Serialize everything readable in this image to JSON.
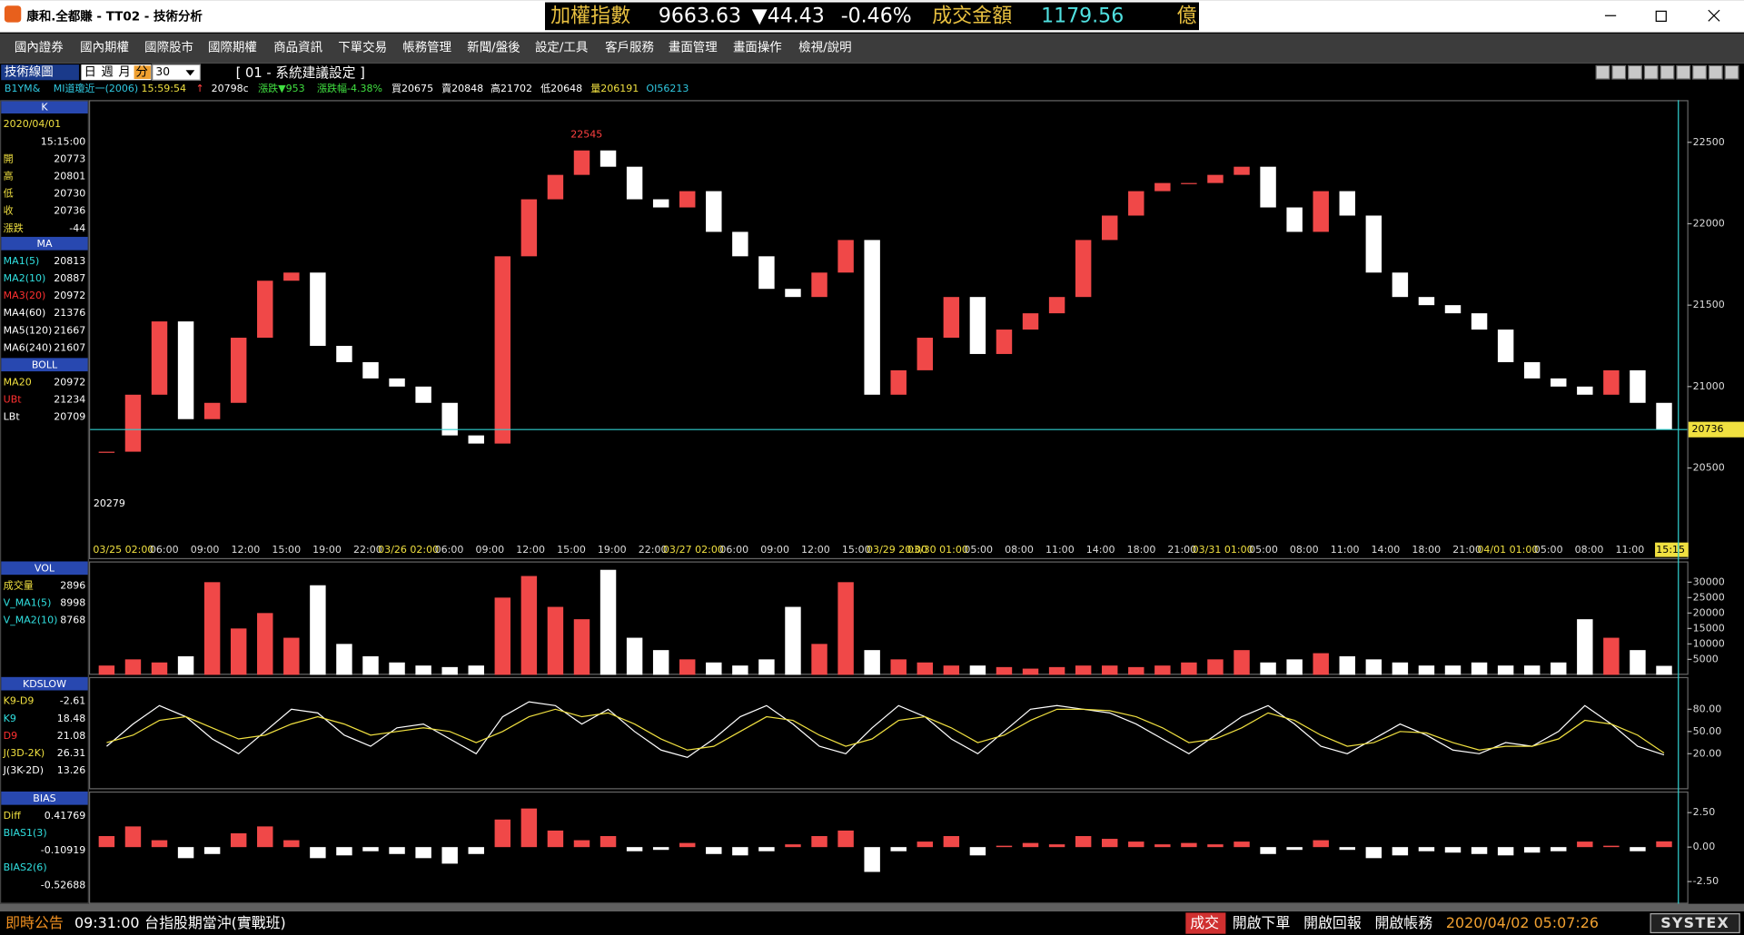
{
  "window": {
    "title": "康和.全都賺 - TT02 - 技術分析"
  },
  "ticker": {
    "index_label": "加權指數",
    "index_value": 9663.63,
    "change": "▼44.43",
    "change_pct": "-0.46%",
    "turnover_label": "成交金額",
    "turnover_value": 1179.56,
    "turnover_unit": "億"
  },
  "menu": [
    "國內證券",
    "國內期權",
    "國際股市",
    "國際期權",
    "商品資訊",
    "下單交易",
    "帳務管理",
    "新聞/盤後",
    "設定/工具",
    "客戶服務",
    "畫面管理",
    "畫面操作",
    "檢視/說明"
  ],
  "toolbar": {
    "title": "技術線圖",
    "periods": [
      "日",
      "週",
      "月",
      "分"
    ],
    "interval": 30,
    "setting": "[ 01 - 系統建議設定 ]"
  },
  "quote": [
    {
      "text": "B1YM&",
      "color": "#30c8e0"
    },
    {
      "text": "MI道瓊近一(2006)",
      "color": "#30c8e0"
    },
    {
      "text": "15:59:54",
      "color": "#f0e040"
    },
    {
      "text": "↑",
      "color": "#ff4040"
    },
    {
      "text": "20798c",
      "color": "#ffffff"
    },
    {
      "text": "漲跌▼953",
      "color": "#40e040"
    },
    {
      "text": "漲跌幅-4.38%",
      "color": "#40e040"
    },
    {
      "text": "買20675",
      "color": "#ffffff"
    },
    {
      "text": "賣20848",
      "color": "#ffffff"
    },
    {
      "text": "高21702",
      "color": "#ffffff"
    },
    {
      "text": "低20648",
      "color": "#ffffff"
    },
    {
      "text": "量206191",
      "color": "#f0e040"
    },
    {
      "text": "OI56213",
      "color": "#30c8e0"
    }
  ],
  "side_panels": [
    {
      "title": "K",
      "rows": [
        {
          "label": "2020/04/01",
          "color": "#f0e040"
        },
        {
          "value": "15:15:00",
          "color": "#f0e040"
        },
        {
          "label": "開",
          "value": 20773,
          "color": "#f0e040"
        },
        {
          "label": "高",
          "value": 20801,
          "color": "#f0e040"
        },
        {
          "label": "低",
          "value": 20730,
          "color": "#f0e040"
        },
        {
          "label": "收",
          "value": 20736,
          "color": "#f0e040"
        },
        {
          "label": "漲跌",
          "value": -44,
          "color": "#f0e040"
        }
      ]
    },
    {
      "title": "MA",
      "rows": [
        {
          "label": "MA1(5)",
          "value": 20813,
          "color": "#30e0e0"
        },
        {
          "label": "MA2(10)",
          "value": 20887,
          "color": "#30e0e0"
        },
        {
          "label": "MA3(20)",
          "value": 20972,
          "color": "#ff3030"
        },
        {
          "label": "MA4(60)",
          "value": 21376,
          "color": "#ffffff"
        },
        {
          "label": "MA5(120)",
          "value": 21667,
          "color": "#ffffff"
        },
        {
          "label": "MA6(240)",
          "value": 21607,
          "color": "#ffffff"
        }
      ]
    },
    {
      "title": "BOLL",
      "rows": [
        {
          "label": "MA20",
          "value": 20972,
          "color": "#f0e040"
        },
        {
          "label": "UBt",
          "value": 21234,
          "color": "#ff3030"
        },
        {
          "label": "LBt",
          "value": 20709,
          "color": "#ffffff"
        }
      ]
    },
    {
      "title": "VOL",
      "rows": [
        {
          "label": "成交量",
          "value": 2896,
          "color": "#f0e040"
        },
        {
          "label": "V_MA1(5)",
          "value": 8998,
          "color": "#30e0e0"
        },
        {
          "label": "V_MA2(10)",
          "value": 8768,
          "color": "#30e0e0"
        }
      ]
    },
    {
      "title": "KDSLOW",
      "rows": [
        {
          "label": "K9-D9",
          "value": -2.61,
          "color": "#f0e040"
        },
        {
          "label": "K9",
          "value": 18.48,
          "color": "#30e0e0"
        },
        {
          "label": "D9",
          "value": 21.08,
          "color": "#ff3030"
        },
        {
          "label": "J(3D-2K)",
          "value": 26.31,
          "color": "#f0e040"
        },
        {
          "label": "J(3K-2D)",
          "value": 13.26,
          "color": "#ffffff"
        }
      ]
    },
    {
      "title": "BIAS",
      "rows": [
        {
          "label": "Diff",
          "value": 0.41769,
          "color": "#f0e040"
        },
        {
          "label": "BIAS1(3)",
          "color": "#30e0e0"
        },
        {
          "value": -0.10919,
          "color": "#ffffff"
        },
        {
          "label": "BIAS2(6)",
          "color": "#30e0e0"
        },
        {
          "value": -0.52688,
          "color": "#ffffff"
        }
      ]
    }
  ],
  "chart_data": [
    {
      "type": "candle",
      "up_color": "#f04848",
      "down_color": "#ffffff",
      "last_color": "#30d0d0",
      "values": [
        20600,
        20950,
        21400,
        20800,
        20900,
        21300,
        21650,
        21700,
        21250,
        21150,
        21050,
        21000,
        20900,
        20700,
        20650,
        21800,
        22150,
        22300,
        22450,
        22350,
        22150,
        22100,
        22200,
        21950,
        21800,
        21600,
        21550,
        21700,
        21900,
        20950,
        21100,
        21300,
        21550,
        21200,
        21350,
        21450,
        21550,
        21900,
        22050,
        22200,
        22250,
        22250,
        22300,
        22350,
        22100,
        21950,
        22200,
        22050,
        21700,
        21550,
        21500,
        21450,
        21350,
        21150,
        21050,
        21000,
        20950,
        21100,
        20900,
        20736
      ],
      "ylim": [
        20049,
        22759
      ],
      "yticks": [
        20500,
        21000,
        21500,
        22000,
        22500
      ],
      "annotations": {
        "high": 22545,
        "low": 20279
      },
      "time_labels": [
        "03/25 02:00",
        "06:00",
        "09:00",
        "12:00",
        "15:00",
        "19:00",
        "22:00",
        "03/26 02:00",
        "06:00",
        "09:00",
        "12:00",
        "15:00",
        "19:00",
        "22:00",
        "03/27 02:00",
        "06:00",
        "09:00",
        "12:00",
        "15:00",
        "03/29 20:00",
        "03/30 01:00",
        "05:00",
        "08:00",
        "11:00",
        "14:00",
        "18:00",
        "21:00",
        "03/31 01:00",
        "05:00",
        "08:00",
        "11:00",
        "14:00",
        "18:00",
        "21:00",
        "04/01 01:00",
        "05:00",
        "08:00",
        "11:00",
        "15:15"
      ]
    },
    {
      "type": "bar",
      "up_color": "#f04848",
      "down_color": "#ffffff",
      "values": [
        3000,
        5000,
        4000,
        6000,
        30000,
        15000,
        20000,
        12000,
        29000,
        10000,
        6000,
        4000,
        3000,
        2500,
        3000,
        25000,
        32000,
        22000,
        18000,
        34000,
        12000,
        8000,
        5000,
        4000,
        3000,
        5000,
        22000,
        10000,
        30000,
        8000,
        5000,
        4000,
        3000,
        3000,
        2500,
        2000,
        2500,
        3000,
        3000,
        2500,
        3000,
        4000,
        5000,
        8000,
        4000,
        5000,
        7000,
        6000,
        5000,
        4000,
        3000,
        3000,
        4000,
        3000,
        3000,
        4000,
        18000,
        12000,
        8000,
        2896
      ],
      "ylim": [
        0,
        36000
      ],
      "yticks": [
        5000,
        10000,
        15000,
        20000,
        25000,
        30000
      ]
    },
    {
      "type": "line",
      "series": [
        {
          "color": "#ffffff",
          "values": [
            30,
            60,
            85,
            70,
            40,
            20,
            50,
            80,
            75,
            45,
            30,
            55,
            60,
            40,
            20,
            70,
            90,
            85,
            60,
            80,
            50,
            25,
            15,
            40,
            70,
            85,
            60,
            30,
            20,
            55,
            85,
            70,
            40,
            20,
            50,
            80,
            85,
            80,
            75,
            60,
            40,
            20,
            45,
            70,
            85,
            60,
            30,
            20,
            40,
            60,
            45,
            25,
            20,
            35,
            30,
            50,
            85,
            60,
            30,
            18.48
          ]
        },
        {
          "color": "#f0e040",
          "values": [
            35,
            45,
            65,
            70,
            55,
            40,
            45,
            60,
            70,
            60,
            45,
            50,
            55,
            50,
            35,
            50,
            70,
            80,
            70,
            75,
            60,
            40,
            25,
            30,
            50,
            70,
            65,
            45,
            30,
            40,
            65,
            70,
            55,
            35,
            45,
            65,
            80,
            80,
            78,
            70,
            55,
            35,
            40,
            55,
            75,
            65,
            45,
            30,
            35,
            50,
            48,
            35,
            25,
            30,
            30,
            40,
            65,
            60,
            45,
            21.08
          ]
        }
      ],
      "ylim": [
        -25,
        119
      ],
      "yticks": [
        {
          "value": 20,
          "label": "20.00"
        },
        {
          "value": 50,
          "label": "50.00"
        },
        {
          "value": 80,
          "label": "80.00"
        }
      ]
    },
    {
      "type": "bar",
      "up_color": "#f04848",
      "down_color": "#ffffff",
      "signed": true,
      "values": [
        0.8,
        1.5,
        0.5,
        -0.8,
        -0.5,
        1.0,
        1.5,
        0.5,
        -0.8,
        -0.6,
        -0.3,
        -0.5,
        -0.8,
        -1.2,
        -0.5,
        2.0,
        2.8,
        1.2,
        0.5,
        0.8,
        -0.3,
        -0.2,
        0.3,
        -0.5,
        -0.6,
        -0.3,
        0.2,
        0.8,
        1.2,
        -1.8,
        -0.3,
        0.4,
        0.8,
        -0.6,
        0.1,
        0.3,
        0.2,
        0.8,
        0.6,
        0.4,
        0.2,
        0.3,
        0.2,
        0.4,
        -0.5,
        -0.2,
        0.5,
        -0.2,
        -0.8,
        -0.6,
        -0.3,
        -0.4,
        -0.5,
        -0.6,
        -0.4,
        -0.3,
        0.4,
        0.1,
        -0.3,
        0.41769
      ],
      "ylim": [
        -4.03,
        3.87
      ],
      "yticks": [
        {
          "value": 2.5,
          "label": "2.50"
        },
        {
          "value": 0,
          "label": "0.00"
        },
        {
          "value": -2.5,
          "label": "-2.50"
        }
      ]
    }
  ],
  "status": {
    "notice_label": "即時公告",
    "notice_time": "09:31:00",
    "notice_text": "台指股期當沖(實戰班)",
    "buttons": [
      "成交",
      "開啟下單",
      "開啟回報",
      "開啟帳務"
    ],
    "clock": "2020/04/02 05:07:26",
    "brand": "SYSTEX"
  }
}
